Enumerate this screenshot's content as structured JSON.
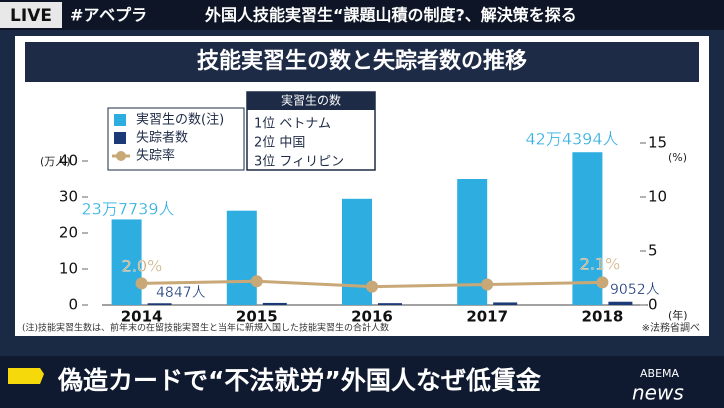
{
  "screen": {
    "live": "LIVE",
    "hashtag": "#アベプラ",
    "headline": "外国人技能実習生“課題山積の制度?、解決策を探る",
    "caption": "偽造カードで“不法就労”外国人なぜ低賃金",
    "logo": "ABEMA",
    "logo_sub": "news"
  },
  "chart_data": {
    "type": "bar",
    "title": "技能実習生の数と失踪者数の推移",
    "categories": [
      "2014",
      "2015",
      "2016",
      "2017",
      "2018"
    ],
    "x_unit": "(年)",
    "y_unit": "(万人)",
    "y2_unit": "(%)",
    "ylim": [
      0,
      45
    ],
    "yticks": [
      0,
      10,
      20,
      30,
      40
    ],
    "y2lim": [
      0,
      15
    ],
    "y2ticks": [
      0,
      5,
      10,
      15
    ],
    "series": [
      {
        "name": "実習生の数(注)",
        "color": "#2eaee0",
        "values": [
          23.7739,
          26.2,
          29.5,
          35,
          42.4394
        ],
        "value_labels": [
          "23万7739人",
          null,
          null,
          null,
          "42万4394人"
        ]
      },
      {
        "name": "失踪者数",
        "color": "#1c3a78",
        "values": [
          0.4847,
          0.58,
          0.51,
          0.71,
          0.9052
        ],
        "value_labels": [
          "4847人",
          null,
          null,
          null,
          "9052人"
        ]
      },
      {
        "name": "失踪率",
        "type": "line",
        "axis": "y2",
        "color": "#c9a877",
        "values": [
          2.0,
          2.2,
          1.7,
          1.9,
          2.1
        ],
        "value_labels": [
          "2.0%",
          null,
          null,
          null,
          "2.1%"
        ]
      }
    ],
    "ranking": {
      "title": "実習生の数",
      "items": [
        "1位 ベトナム",
        "2位 中国",
        "3位 フィリピン"
      ]
    },
    "note": "(注)技能実習生数は、前年末の在留技能実習生と当年に新規入国した技能実習生の合計人数",
    "source": "※法務省調べ"
  }
}
